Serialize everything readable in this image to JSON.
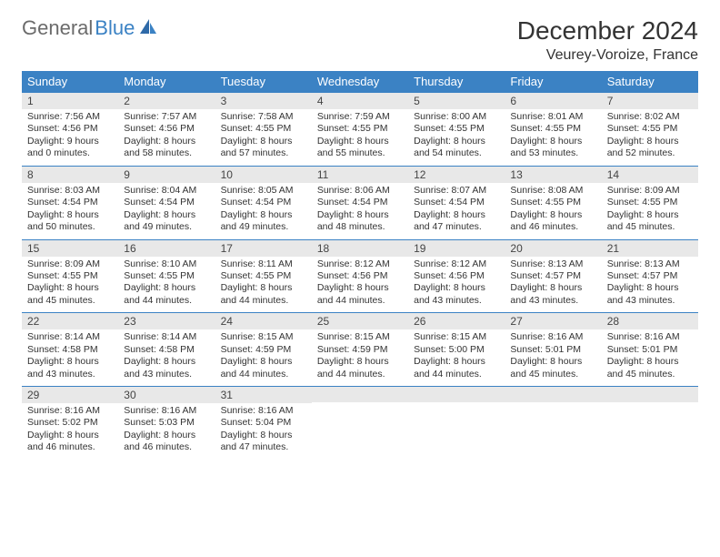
{
  "brand": {
    "part1": "General",
    "part2": "Blue"
  },
  "title": "December 2024",
  "location": "Veurey-Voroize, France",
  "colors": {
    "header_bg": "#3b82c4",
    "header_text": "#ffffff",
    "daynum_bg": "#e8e8e8",
    "border": "#3b82c4",
    "brand_gray": "#6b6b6b",
    "brand_blue": "#3b82c4",
    "text": "#333333",
    "background": "#ffffff"
  },
  "typography": {
    "title_fontsize": 28,
    "location_fontsize": 16,
    "header_fontsize": 13,
    "daynum_fontsize": 12,
    "body_fontsize": 10.5
  },
  "weekdays": [
    "Sunday",
    "Monday",
    "Tuesday",
    "Wednesday",
    "Thursday",
    "Friday",
    "Saturday"
  ],
  "weeks": [
    [
      {
        "day": "1",
        "sunrise": "Sunrise: 7:56 AM",
        "sunset": "Sunset: 4:56 PM",
        "daylight": "Daylight: 9 hours and 0 minutes."
      },
      {
        "day": "2",
        "sunrise": "Sunrise: 7:57 AM",
        "sunset": "Sunset: 4:56 PM",
        "daylight": "Daylight: 8 hours and 58 minutes."
      },
      {
        "day": "3",
        "sunrise": "Sunrise: 7:58 AM",
        "sunset": "Sunset: 4:55 PM",
        "daylight": "Daylight: 8 hours and 57 minutes."
      },
      {
        "day": "4",
        "sunrise": "Sunrise: 7:59 AM",
        "sunset": "Sunset: 4:55 PM",
        "daylight": "Daylight: 8 hours and 55 minutes."
      },
      {
        "day": "5",
        "sunrise": "Sunrise: 8:00 AM",
        "sunset": "Sunset: 4:55 PM",
        "daylight": "Daylight: 8 hours and 54 minutes."
      },
      {
        "day": "6",
        "sunrise": "Sunrise: 8:01 AM",
        "sunset": "Sunset: 4:55 PM",
        "daylight": "Daylight: 8 hours and 53 minutes."
      },
      {
        "day": "7",
        "sunrise": "Sunrise: 8:02 AM",
        "sunset": "Sunset: 4:55 PM",
        "daylight": "Daylight: 8 hours and 52 minutes."
      }
    ],
    [
      {
        "day": "8",
        "sunrise": "Sunrise: 8:03 AM",
        "sunset": "Sunset: 4:54 PM",
        "daylight": "Daylight: 8 hours and 50 minutes."
      },
      {
        "day": "9",
        "sunrise": "Sunrise: 8:04 AM",
        "sunset": "Sunset: 4:54 PM",
        "daylight": "Daylight: 8 hours and 49 minutes."
      },
      {
        "day": "10",
        "sunrise": "Sunrise: 8:05 AM",
        "sunset": "Sunset: 4:54 PM",
        "daylight": "Daylight: 8 hours and 49 minutes."
      },
      {
        "day": "11",
        "sunrise": "Sunrise: 8:06 AM",
        "sunset": "Sunset: 4:54 PM",
        "daylight": "Daylight: 8 hours and 48 minutes."
      },
      {
        "day": "12",
        "sunrise": "Sunrise: 8:07 AM",
        "sunset": "Sunset: 4:54 PM",
        "daylight": "Daylight: 8 hours and 47 minutes."
      },
      {
        "day": "13",
        "sunrise": "Sunrise: 8:08 AM",
        "sunset": "Sunset: 4:55 PM",
        "daylight": "Daylight: 8 hours and 46 minutes."
      },
      {
        "day": "14",
        "sunrise": "Sunrise: 8:09 AM",
        "sunset": "Sunset: 4:55 PM",
        "daylight": "Daylight: 8 hours and 45 minutes."
      }
    ],
    [
      {
        "day": "15",
        "sunrise": "Sunrise: 8:09 AM",
        "sunset": "Sunset: 4:55 PM",
        "daylight": "Daylight: 8 hours and 45 minutes."
      },
      {
        "day": "16",
        "sunrise": "Sunrise: 8:10 AM",
        "sunset": "Sunset: 4:55 PM",
        "daylight": "Daylight: 8 hours and 44 minutes."
      },
      {
        "day": "17",
        "sunrise": "Sunrise: 8:11 AM",
        "sunset": "Sunset: 4:55 PM",
        "daylight": "Daylight: 8 hours and 44 minutes."
      },
      {
        "day": "18",
        "sunrise": "Sunrise: 8:12 AM",
        "sunset": "Sunset: 4:56 PM",
        "daylight": "Daylight: 8 hours and 44 minutes."
      },
      {
        "day": "19",
        "sunrise": "Sunrise: 8:12 AM",
        "sunset": "Sunset: 4:56 PM",
        "daylight": "Daylight: 8 hours and 43 minutes."
      },
      {
        "day": "20",
        "sunrise": "Sunrise: 8:13 AM",
        "sunset": "Sunset: 4:57 PM",
        "daylight": "Daylight: 8 hours and 43 minutes."
      },
      {
        "day": "21",
        "sunrise": "Sunrise: 8:13 AM",
        "sunset": "Sunset: 4:57 PM",
        "daylight": "Daylight: 8 hours and 43 minutes."
      }
    ],
    [
      {
        "day": "22",
        "sunrise": "Sunrise: 8:14 AM",
        "sunset": "Sunset: 4:58 PM",
        "daylight": "Daylight: 8 hours and 43 minutes."
      },
      {
        "day": "23",
        "sunrise": "Sunrise: 8:14 AM",
        "sunset": "Sunset: 4:58 PM",
        "daylight": "Daylight: 8 hours and 43 minutes."
      },
      {
        "day": "24",
        "sunrise": "Sunrise: 8:15 AM",
        "sunset": "Sunset: 4:59 PM",
        "daylight": "Daylight: 8 hours and 44 minutes."
      },
      {
        "day": "25",
        "sunrise": "Sunrise: 8:15 AM",
        "sunset": "Sunset: 4:59 PM",
        "daylight": "Daylight: 8 hours and 44 minutes."
      },
      {
        "day": "26",
        "sunrise": "Sunrise: 8:15 AM",
        "sunset": "Sunset: 5:00 PM",
        "daylight": "Daylight: 8 hours and 44 minutes."
      },
      {
        "day": "27",
        "sunrise": "Sunrise: 8:16 AM",
        "sunset": "Sunset: 5:01 PM",
        "daylight": "Daylight: 8 hours and 45 minutes."
      },
      {
        "day": "28",
        "sunrise": "Sunrise: 8:16 AM",
        "sunset": "Sunset: 5:01 PM",
        "daylight": "Daylight: 8 hours and 45 minutes."
      }
    ],
    [
      {
        "day": "29",
        "sunrise": "Sunrise: 8:16 AM",
        "sunset": "Sunset: 5:02 PM",
        "daylight": "Daylight: 8 hours and 46 minutes."
      },
      {
        "day": "30",
        "sunrise": "Sunrise: 8:16 AM",
        "sunset": "Sunset: 5:03 PM",
        "daylight": "Daylight: 8 hours and 46 minutes."
      },
      {
        "day": "31",
        "sunrise": "Sunrise: 8:16 AM",
        "sunset": "Sunset: 5:04 PM",
        "daylight": "Daylight: 8 hours and 47 minutes."
      },
      {
        "day": "",
        "sunrise": "",
        "sunset": "",
        "daylight": ""
      },
      {
        "day": "",
        "sunrise": "",
        "sunset": "",
        "daylight": ""
      },
      {
        "day": "",
        "sunrise": "",
        "sunset": "",
        "daylight": ""
      },
      {
        "day": "",
        "sunrise": "",
        "sunset": "",
        "daylight": ""
      }
    ]
  ]
}
